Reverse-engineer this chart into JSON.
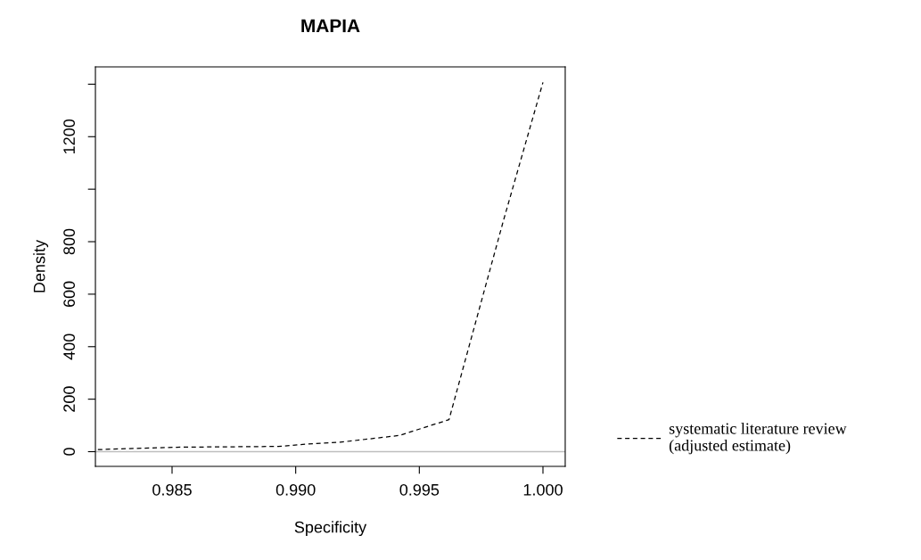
{
  "chart_data": {
    "type": "line",
    "title": "MAPIA",
    "xlabel": "Specificity",
    "ylabel": "Density",
    "series": [
      {
        "name": "systematic literature review\n(adjusted estimate)",
        "color": "#000000",
        "line_style": "dashed",
        "x": [
          0.982,
          0.9852,
          0.9893,
          0.9905,
          0.9918,
          0.9942,
          0.9962,
          0.9984,
          1.0
        ],
        "values": [
          8,
          17,
          20,
          29,
          36,
          62,
          122,
          880,
          1407
        ]
      }
    ],
    "xlim": [
      0.9819,
      1.0009
    ],
    "ylim": [
      -56,
      1466
    ],
    "xticks": [
      0.985,
      {
        "value": 0.99,
        "label": "0.990"
      },
      0.995,
      {
        "value": 1.0,
        "label": "1.000"
      }
    ],
    "yticks": [
      0,
      200,
      400,
      600,
      800,
      {
        "value": 1000,
        "label": null
      },
      1200,
      {
        "value": 1400,
        "label": null
      }
    ],
    "ref_lines": [
      {
        "axis": "y",
        "value": 0,
        "color": "#bebebe"
      }
    ],
    "grid": false,
    "legend": "right",
    "marker": "none"
  }
}
